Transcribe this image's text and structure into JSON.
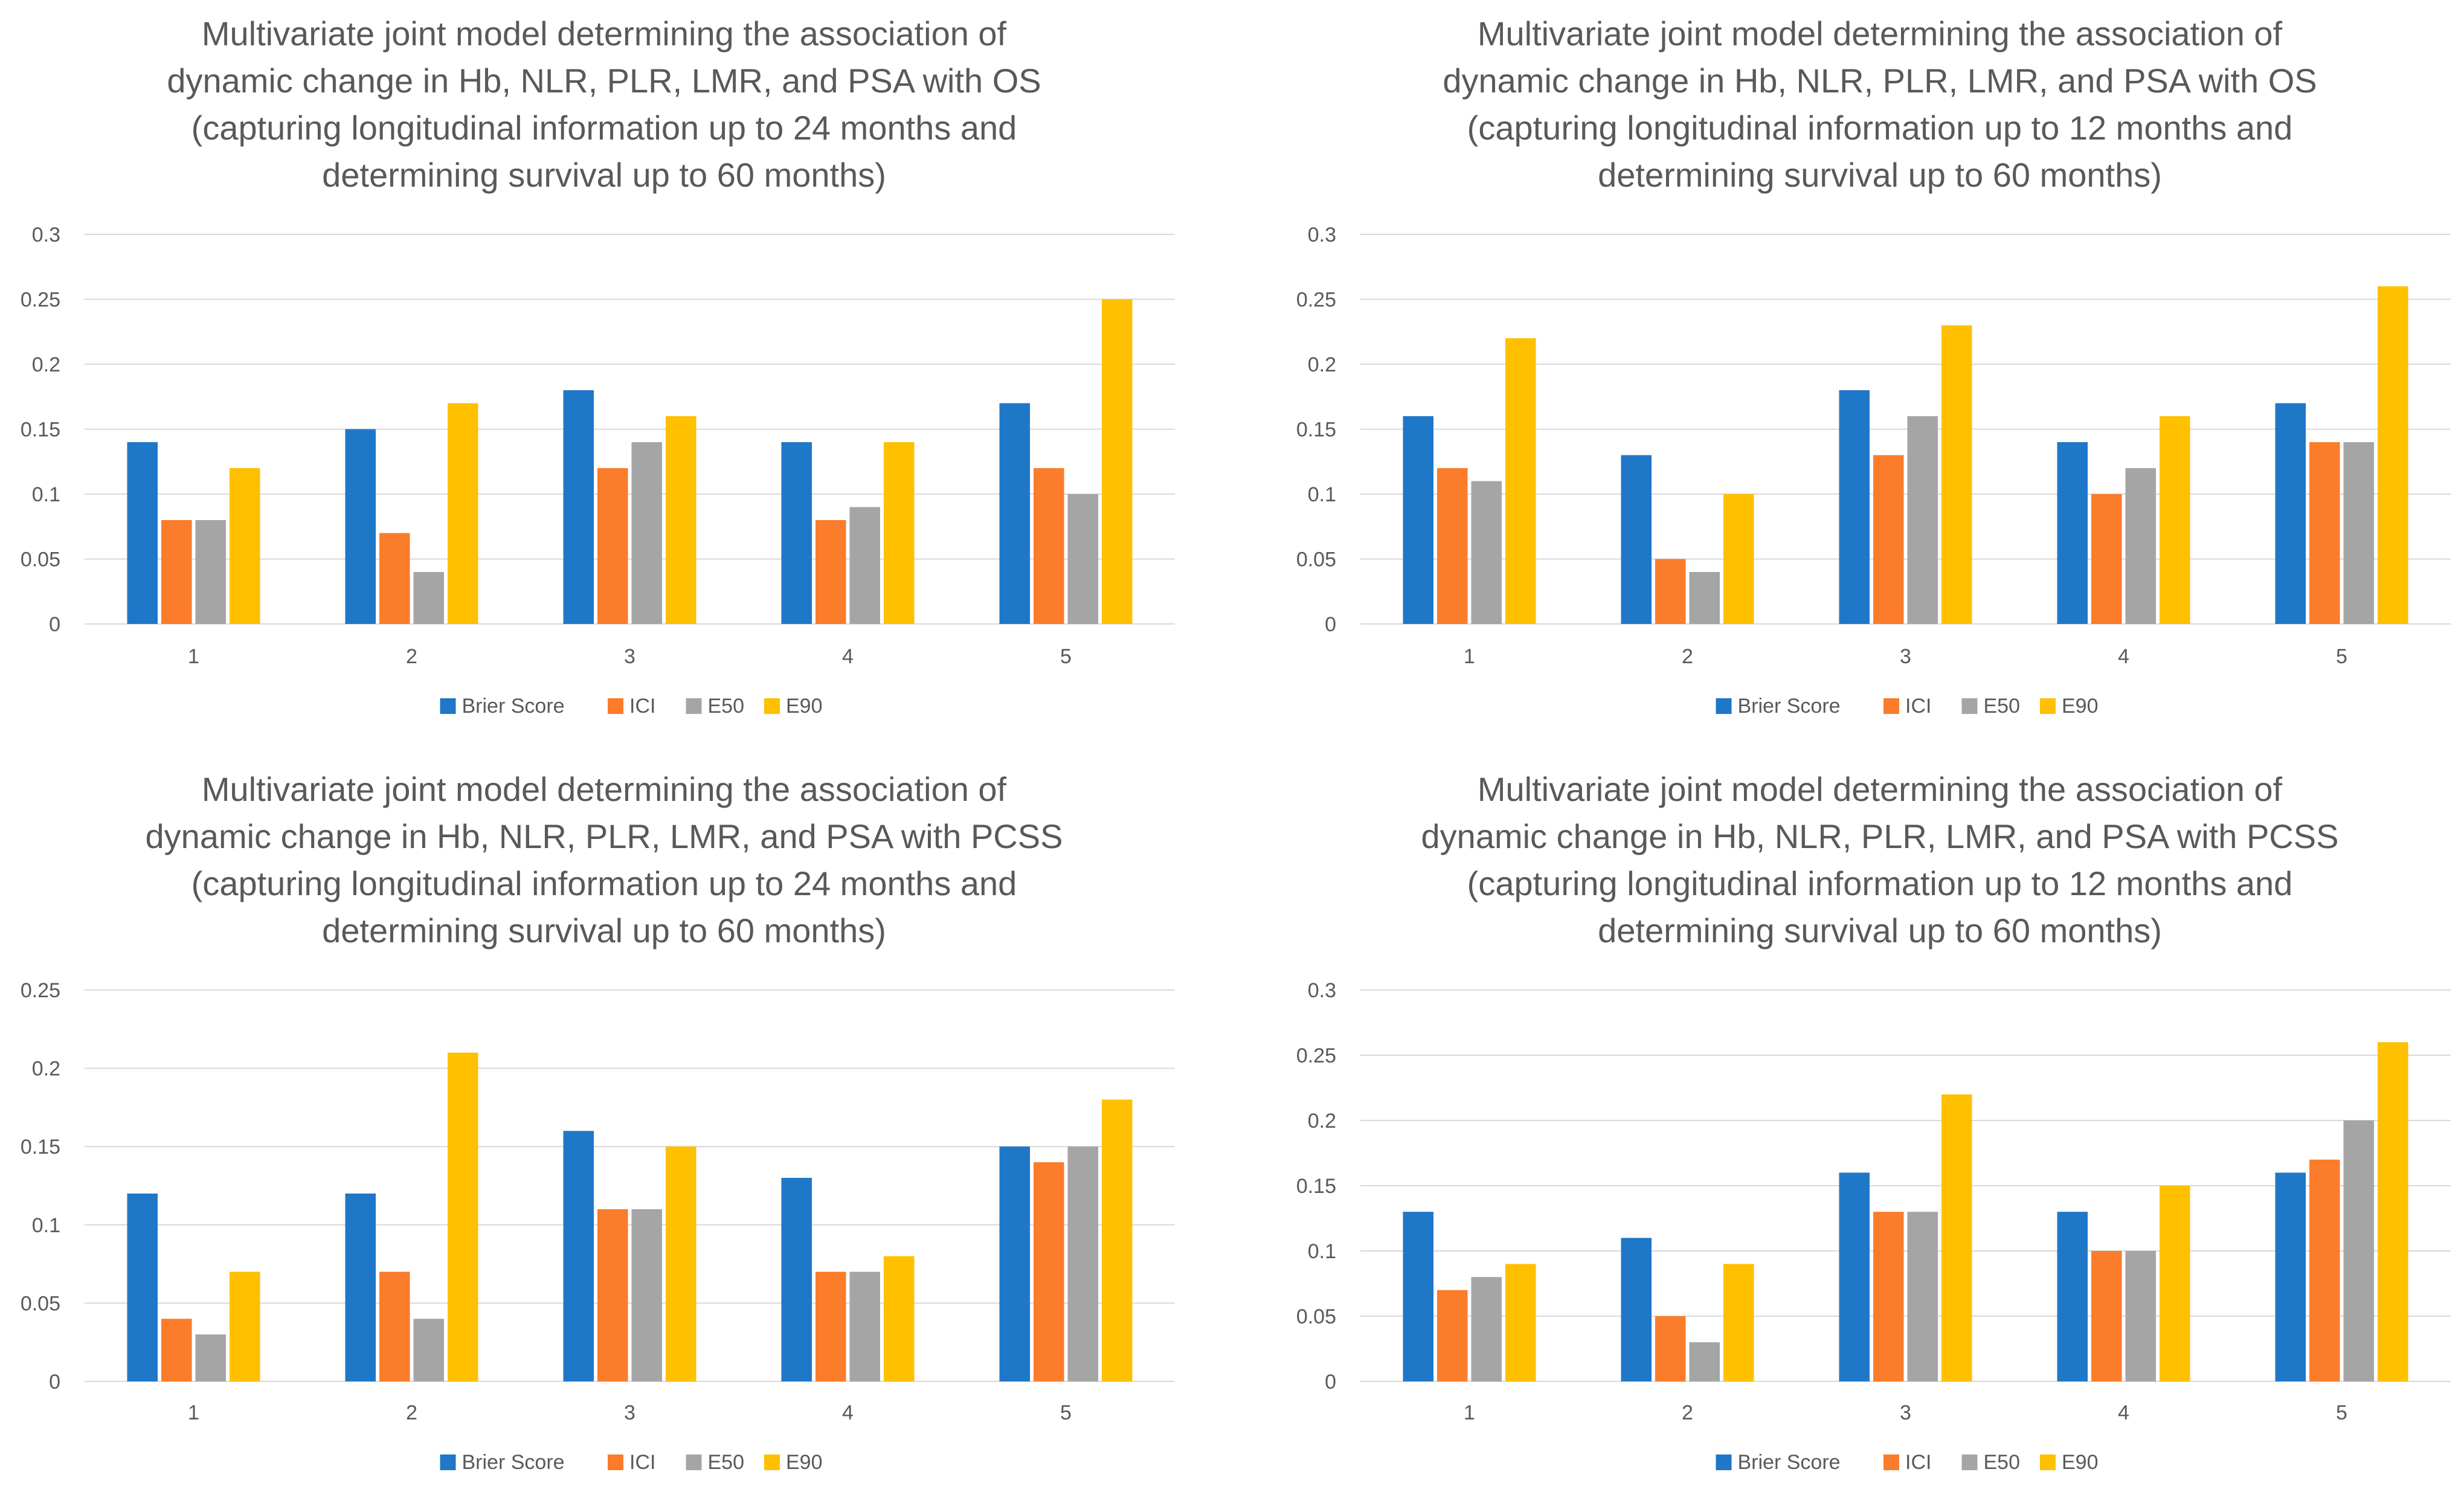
{
  "colors": {
    "brier": "#1f77c8",
    "ici": "#fb7c2a",
    "e50": "#a5a5a5",
    "e90": "#ffc000",
    "text": "#595959",
    "grid": "#d9d9d9"
  },
  "chart_data": [
    {
      "type": "bar",
      "title": [
        "Multivariate joint model determining the association of",
        "dynamic change in Hb, NLR, PLR, LMR, and PSA with OS",
        "(capturing longitudinal information up to 24 months and",
        "determining survival up to 60 months)"
      ],
      "categories": [
        "1",
        "2",
        "3",
        "4",
        "5"
      ],
      "ylim": [
        0,
        0.3
      ],
      "yticks": [
        "0",
        "0.05",
        "0.1",
        "0.15",
        "0.2",
        "0.25",
        "0.3"
      ],
      "legend_position": "bottom",
      "series": [
        {
          "name": "Brier Score",
          "color_key": "brier",
          "values": [
            0.14,
            0.15,
            0.18,
            0.14,
            0.17
          ]
        },
        {
          "name": "ICI",
          "color_key": "ici",
          "values": [
            0.08,
            0.07,
            0.12,
            0.08,
            0.12
          ]
        },
        {
          "name": "E50",
          "color_key": "e50",
          "values": [
            0.08,
            0.04,
            0.14,
            0.09,
            0.1
          ]
        },
        {
          "name": "E90",
          "color_key": "e90",
          "values": [
            0.12,
            0.17,
            0.16,
            0.14,
            0.25
          ]
        }
      ]
    },
    {
      "type": "bar",
      "title": [
        "Multivariate joint model determining the association of",
        "dynamic change in Hb, NLR, PLR, LMR, and PSA with OS",
        "(capturing longitudinal information up to 12 months and",
        "determining survival up to 60 months)"
      ],
      "categories": [
        "1",
        "2",
        "3",
        "4",
        "5"
      ],
      "ylim": [
        0,
        0.3
      ],
      "yticks": [
        "0",
        "0.05",
        "0.1",
        "0.15",
        "0.2",
        "0.25",
        "0.3"
      ],
      "legend_position": "bottom",
      "series": [
        {
          "name": "Brier Score",
          "color_key": "brier",
          "values": [
            0.16,
            0.13,
            0.18,
            0.14,
            0.17
          ]
        },
        {
          "name": "ICI",
          "color_key": "ici",
          "values": [
            0.12,
            0.05,
            0.13,
            0.1,
            0.14
          ]
        },
        {
          "name": "E50",
          "color_key": "e50",
          "values": [
            0.11,
            0.04,
            0.16,
            0.12,
            0.14
          ]
        },
        {
          "name": "E90",
          "color_key": "e90",
          "values": [
            0.22,
            0.1,
            0.23,
            0.16,
            0.26
          ]
        }
      ]
    },
    {
      "type": "bar",
      "title": [
        "Multivariate joint model determining the association of",
        "dynamic change in Hb, NLR, PLR, LMR, and PSA with PCSS",
        "(capturing longitudinal information up to 24 months and",
        "determining survival up to 60 months)"
      ],
      "categories": [
        "1",
        "2",
        "3",
        "4",
        "5"
      ],
      "ylim": [
        0,
        0.25
      ],
      "yticks": [
        "0",
        "0.05",
        "0.1",
        "0.15",
        "0.2",
        "0.25"
      ],
      "legend_position": "bottom",
      "series": [
        {
          "name": "Brier Score",
          "color_key": "brier",
          "values": [
            0.12,
            0.12,
            0.16,
            0.13,
            0.15
          ]
        },
        {
          "name": "ICI",
          "color_key": "ici",
          "values": [
            0.04,
            0.07,
            0.11,
            0.07,
            0.14
          ]
        },
        {
          "name": "E50",
          "color_key": "e50",
          "values": [
            0.03,
            0.04,
            0.11,
            0.07,
            0.15
          ]
        },
        {
          "name": "E90",
          "color_key": "e90",
          "values": [
            0.07,
            0.21,
            0.15,
            0.08,
            0.18
          ]
        }
      ]
    },
    {
      "type": "bar",
      "title": [
        "Multivariate joint model determining the association of",
        "dynamic change in Hb, NLR, PLR, LMR, and PSA with PCSS",
        "(capturing longitudinal information up to 12 months and",
        "determining survival up to 60 months)"
      ],
      "categories": [
        "1",
        "2",
        "3",
        "4",
        "5"
      ],
      "ylim": [
        0,
        0.3
      ],
      "yticks": [
        "0",
        "0.05",
        "0.1",
        "0.15",
        "0.2",
        "0.25",
        "0.3"
      ],
      "legend_position": "bottom",
      "series": [
        {
          "name": "Brier Score",
          "color_key": "brier",
          "values": [
            0.13,
            0.11,
            0.16,
            0.13,
            0.16
          ]
        },
        {
          "name": "ICI",
          "color_key": "ici",
          "values": [
            0.07,
            0.05,
            0.13,
            0.1,
            0.17
          ]
        },
        {
          "name": "E50",
          "color_key": "e50",
          "values": [
            0.08,
            0.03,
            0.13,
            0.1,
            0.2
          ]
        },
        {
          "name": "E90",
          "color_key": "e90",
          "values": [
            0.09,
            0.09,
            0.22,
            0.15,
            0.26
          ]
        }
      ]
    }
  ]
}
